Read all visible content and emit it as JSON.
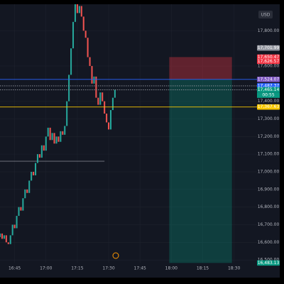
{
  "chart_data": {
    "type": "candlestick",
    "currency": "USD",
    "x": [
      "16:38",
      "16:39",
      "16:40",
      "16:41",
      "16:42",
      "16:43",
      "16:44",
      "16:45",
      "16:46",
      "16:47",
      "16:48",
      "16:49",
      "16:50",
      "16:51",
      "16:52",
      "16:53",
      "16:54",
      "16:55",
      "16:56",
      "16:57",
      "16:58",
      "16:59",
      "17:00",
      "17:01",
      "17:02",
      "17:03",
      "17:04",
      "17:05",
      "17:06",
      "17:07",
      "17:08",
      "17:09",
      "17:10",
      "17:11",
      "17:12",
      "17:13",
      "17:14",
      "17:15",
      "17:16",
      "17:17",
      "17:18",
      "17:19",
      "17:20",
      "17:21",
      "17:22",
      "17:23",
      "17:24",
      "17:25",
      "17:26",
      "17:27",
      "17:28",
      "17:29",
      "17:30",
      "17:31",
      "17:32",
      "17:33"
    ],
    "open": [
      16630,
      16650,
      16620,
      16640,
      16600,
      16590,
      16640,
      16700,
      16680,
      16750,
      16800,
      16780,
      16850,
      16900,
      16880,
      16950,
      17000,
      16980,
      17050,
      17100,
      17080,
      17150,
      17120,
      17200,
      17250,
      17180,
      17220,
      17160,
      17200,
      17170,
      17230,
      17210,
      17260,
      17400,
      17550,
      17700,
      17850,
      17950,
      17900,
      17940,
      17880,
      17800,
      17760,
      17650,
      17600,
      17500,
      17540,
      17420,
      17380,
      17450,
      17400,
      17330,
      17280,
      17240,
      17350,
      17420
    ],
    "close": [
      16650,
      16620,
      16640,
      16600,
      16590,
      16640,
      16700,
      16680,
      16750,
      16800,
      16780,
      16850,
      16900,
      16880,
      16950,
      17000,
      16980,
      17050,
      17100,
      17080,
      17150,
      17120,
      17200,
      17250,
      17180,
      17220,
      17160,
      17200,
      17170,
      17230,
      17210,
      17260,
      17400,
      17550,
      17700,
      17850,
      17950,
      17900,
      17940,
      17880,
      17800,
      17760,
      17650,
      17600,
      17500,
      17540,
      17420,
      17380,
      17450,
      17400,
      17330,
      17280,
      17240,
      17350,
      17420,
      17465
    ],
    "up_color": "#26a69a",
    "down_color": "#ef5350",
    "xlim": [
      "16:38",
      "18:41"
    ],
    "xticks": [
      "16:45",
      "17:00",
      "17:15",
      "17:30",
      "17:45",
      "18:00",
      "18:15",
      "18:30"
    ],
    "ylim": [
      16400,
      17950
    ],
    "yticks": [
      {
        "value": 16500,
        "label": "16,500.00"
      },
      {
        "value": 16600,
        "label": "16,600.00"
      },
      {
        "value": 16700,
        "label": "16,700.00"
      },
      {
        "value": 16800,
        "label": "16,800.00"
      },
      {
        "value": 16900,
        "label": "16,900.00"
      },
      {
        "value": 17000,
        "label": "17,000.00"
      },
      {
        "value": 17100,
        "label": "17,100.00"
      },
      {
        "value": 17200,
        "label": "17,200.00"
      },
      {
        "value": 17300,
        "label": "17,300.00"
      },
      {
        "value": 17400,
        "label": "17,400.00"
      },
      {
        "value": 17600,
        "label": "17,600.00"
      },
      {
        "value": 17800,
        "label": "17,800.00"
      }
    ],
    "level_line": {
      "value": 17060,
      "x": [
        "16:38",
        "17:28"
      ]
    },
    "position": {
      "x": [
        "17:59",
        "18:29"
      ],
      "stop": 17650.47,
      "entry": 17524.07,
      "target": 16483.13
    },
    "price_labels": [
      {
        "value": 17701.99,
        "label": "17,701.99",
        "color": "#9598a1"
      },
      {
        "value": 17650.47,
        "label": "17,650.47",
        "color": "#f23645"
      },
      {
        "value": 17626.57,
        "label": "17,626.57",
        "color": "#f23645"
      },
      {
        "value": 17524.07,
        "label": "17,524.07",
        "color": "#7e57c2",
        "line": "solid",
        "line_color": "#2962ff"
      },
      {
        "value": 17487.37,
        "label": "17,487.37",
        "color": "#2962ff",
        "line": "dotted",
        "line_color": "#9598a1"
      },
      {
        "value": 17465.14,
        "label": "17,465.14",
        "color": "#089981",
        "line": "dotted",
        "line_color": "#9598a1"
      },
      {
        "value": 17367.63,
        "label": "17,367.63",
        "color": "#f7c600",
        "line": "solid",
        "line_color": "#f7c600"
      },
      {
        "value": 16483.13,
        "label": "16,483.13",
        "color": "#089981"
      }
    ],
    "countdown": "00:55"
  }
}
